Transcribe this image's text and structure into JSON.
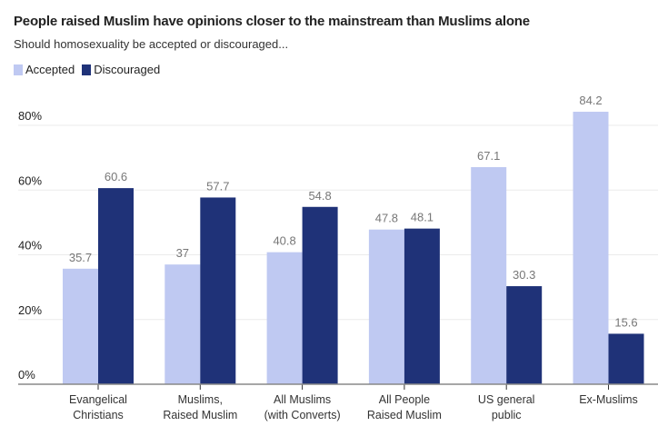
{
  "chart_data": {
    "type": "bar",
    "title": "People raised Muslim have opinions closer to the mainstream than Muslims alone",
    "subtitle": "Should homosexuality be accepted or discouraged...",
    "xlabel": "",
    "ylabel": "",
    "ylim": [
      0,
      80
    ],
    "yticks": [
      0,
      20,
      40,
      60,
      80
    ],
    "ytick_labels": [
      "0%",
      "20%",
      "40%",
      "60%",
      "80%"
    ],
    "grid": true,
    "legend_position": "top-left",
    "categories": [
      [
        "Evangelical",
        "Christians"
      ],
      [
        "Muslims,",
        "Raised Muslim"
      ],
      [
        "All Muslims",
        "(with Converts)"
      ],
      [
        "All People",
        "Raised Muslim"
      ],
      [
        "US general",
        "public"
      ],
      [
        "Ex-Muslims"
      ]
    ],
    "series": [
      {
        "name": "Accepted",
        "color": "#bfc9f2",
        "values": [
          35.7,
          37,
          40.8,
          47.8,
          67.1,
          84.2
        ],
        "labels": [
          "35.7",
          "37",
          "40.8",
          "47.8",
          "67.1",
          "84.2"
        ]
      },
      {
        "name": "Discouraged",
        "color": "#1f3278",
        "values": [
          60.6,
          57.7,
          54.8,
          48.1,
          30.3,
          15.6
        ],
        "labels": [
          "60.6",
          "57.7",
          "54.8",
          "48.1",
          "30.3",
          "15.6"
        ]
      }
    ]
  }
}
